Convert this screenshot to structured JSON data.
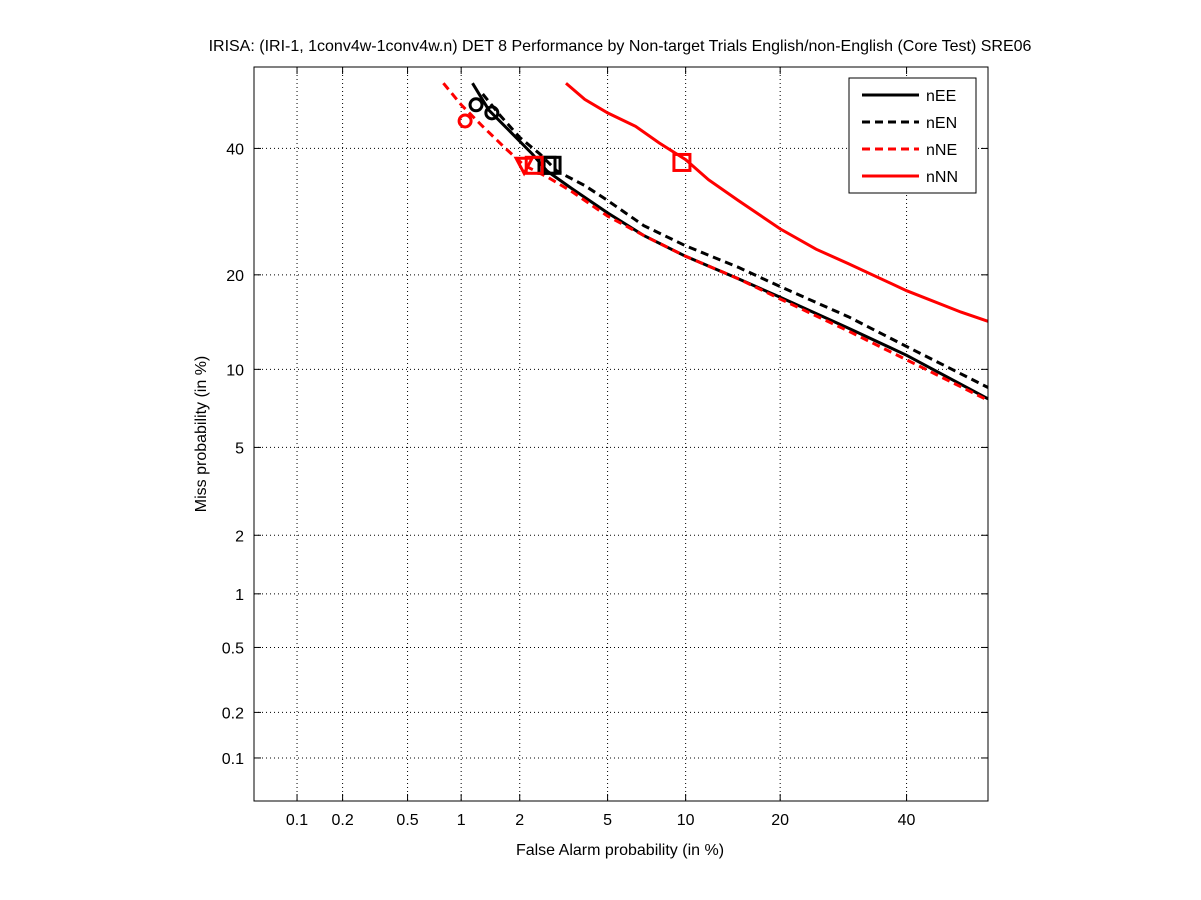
{
  "chart_data": {
    "type": "line",
    "title": "IRISA: (IRI-1, 1conv4w-1conv4w.n) DET 8 Performance by Non-target Trials English/non-English (Core Test) SRE06",
    "xlabel": "False Alarm probability (in %)",
    "ylabel": "Miss probability (in %)",
    "x_scale": "probit",
    "y_scale": "probit",
    "xlim": [
      0.05,
      55
    ],
    "ylim": [
      0.05,
      55
    ],
    "xticks": [
      "0.1",
      "0.2",
      "0.5",
      "1",
      "2",
      "5",
      "10",
      "20",
      "40"
    ],
    "xtick_values": [
      0.1,
      0.2,
      0.5,
      1,
      2,
      5,
      10,
      20,
      40
    ],
    "yticks": [
      "0.1",
      "0.2",
      "0.5",
      "1",
      "2",
      "5",
      "10",
      "20",
      "40"
    ],
    "ytick_values": [
      0.1,
      0.2,
      0.5,
      1,
      2,
      5,
      10,
      20,
      40
    ],
    "grid": true,
    "legend_position": "top-right",
    "series": [
      {
        "name": "nEE",
        "color": "#000000",
        "style": "solid",
        "x": [
          1.15,
          1.4,
          1.8,
          2.3,
          2.7,
          3.5,
          5.0,
          7.0,
          10.0,
          15.0,
          20.0,
          30.0,
          40.0,
          55.0
        ],
        "y": [
          52.0,
          47.0,
          43.0,
          39.0,
          36.0,
          33.0,
          29.0,
          25.5,
          22.5,
          19.5,
          17.2,
          13.8,
          11.2,
          7.8
        ],
        "markers": [
          {
            "shape": "circle",
            "x": 1.2,
            "y": 48.0
          },
          {
            "shape": "square",
            "x": 2.7,
            "y": 37.0
          }
        ]
      },
      {
        "name": "nEN",
        "color": "#000000",
        "style": "dashed",
        "x": [
          1.3,
          1.6,
          2.0,
          2.5,
          3.0,
          4.0,
          5.0,
          7.0,
          10.0,
          15.0,
          20.0,
          30.0,
          40.0,
          55.0
        ],
        "y": [
          50.0,
          46.0,
          42.0,
          39.0,
          36.0,
          33.5,
          31.0,
          27.0,
          24.0,
          21.0,
          18.5,
          15.0,
          12.0,
          8.6
        ],
        "markers": [
          {
            "shape": "circle",
            "x": 1.45,
            "y": 46.5
          },
          {
            "shape": "square",
            "x": 2.85,
            "y": 37.0
          }
        ]
      },
      {
        "name": "nNE",
        "color": "#ff0000",
        "style": "dashed",
        "x": [
          0.8,
          1.0,
          1.3,
          1.7,
          2.1,
          2.7,
          3.5,
          5.0,
          7.0,
          10.0,
          15.0,
          20.0,
          30.0,
          40.0,
          55.0
        ],
        "y": [
          52.0,
          48.0,
          44.0,
          40.0,
          37.0,
          35.0,
          32.5,
          28.5,
          25.5,
          22.5,
          19.5,
          17.0,
          13.5,
          10.8,
          7.7
        ],
        "markers": [
          {
            "shape": "circle",
            "x": 1.05,
            "y": 45.0
          },
          {
            "shape": "triangle-down",
            "x": 2.1,
            "y": 37.0
          },
          {
            "shape": "square",
            "x": 2.35,
            "y": 37.0
          }
        ]
      },
      {
        "name": "nNN",
        "color": "#ff0000",
        "style": "solid",
        "x": [
          3.3,
          4.0,
          5.0,
          6.5,
          8.0,
          10.0,
          12.0,
          15.0,
          20.0,
          25.0,
          30.0,
          40.0,
          50.0,
          55.0
        ],
        "y": [
          52.0,
          49.0,
          46.5,
          44.0,
          41.0,
          38.0,
          34.5,
          31.0,
          26.5,
          23.5,
          21.5,
          18.0,
          15.5,
          14.5
        ],
        "markers": [
          {
            "shape": "square",
            "x": 9.7,
            "y": 37.5
          }
        ]
      }
    ]
  }
}
